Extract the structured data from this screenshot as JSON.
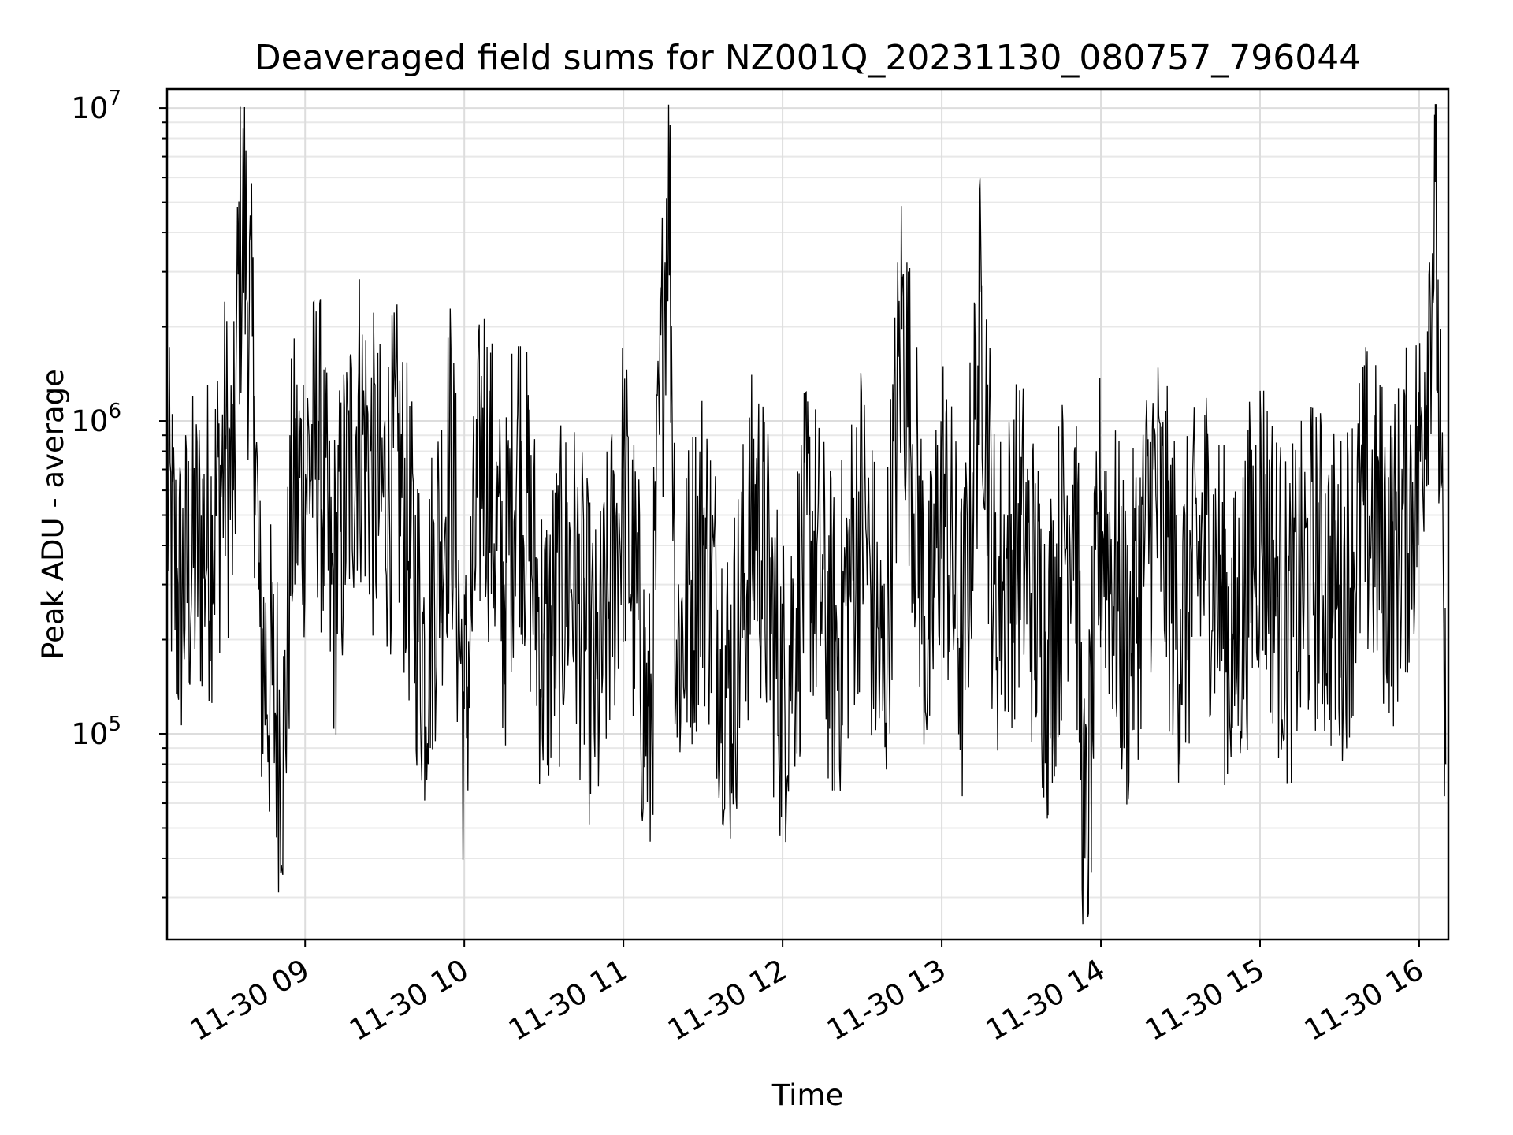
{
  "chart_data": {
    "type": "line",
    "title": "Deaveraged field sums for NZ001Q_20231130_080757_796044",
    "xlabel": "Time",
    "ylabel": "Peak ADU - average",
    "yscale": "log",
    "ylim": [
      22000,
      11500000
    ],
    "y_tick_labels": [
      {
        "base": "10",
        "exp": "5",
        "value": 100000
      },
      {
        "base": "10",
        "exp": "6",
        "value": 1000000
      },
      {
        "base": "10",
        "exp": "7",
        "value": 10000000
      }
    ],
    "x_tick_labels": [
      "11-30 09",
      "11-30 10",
      "11-30 11",
      "11-30 12",
      "11-30 13",
      "11-30 14",
      "11-30 15",
      "11-30 16"
    ],
    "x_tick_values": [
      "2023-11-30 09:00",
      "2023-11-30 10:00",
      "2023-11-30 11:00",
      "2023-11-30 12:00",
      "2023-11-30 13:00",
      "2023-11-30 14:00",
      "2023-11-30 15:00",
      "2023-11-30 16:00"
    ],
    "xlim": [
      "2023-11-30 08:07:57",
      "2023-11-30 16:11:00"
    ],
    "grid": true,
    "line_color": "#000000",
    "series": [
      {
        "x": [
          "2023-11-30 08:08",
          "2023-11-30 08:12",
          "2023-11-30 08:18",
          "2023-11-30 08:25",
          "2023-11-30 08:30",
          "2023-11-30 08:33",
          "2023-11-30 08:35",
          "2023-11-30 08:37",
          "2023-11-30 08:39",
          "2023-11-30 08:41",
          "2023-11-30 08:43",
          "2023-11-30 08:48",
          "2023-11-30 08:52",
          "2023-11-30 08:55",
          "2023-11-30 09:05",
          "2023-11-30 09:10",
          "2023-11-30 09:20",
          "2023-11-30 09:28",
          "2023-11-30 09:35",
          "2023-11-30 09:45",
          "2023-11-30 09:55",
          "2023-11-30 10:00",
          "2023-11-30 10:07",
          "2023-11-30 10:15",
          "2023-11-30 10:20",
          "2023-11-30 10:30",
          "2023-11-30 10:40",
          "2023-11-30 10:50",
          "2023-11-30 11:00",
          "2023-11-30 11:10",
          "2023-11-30 11:17",
          "2023-11-30 11:20",
          "2023-11-30 11:30",
          "2023-11-30 11:40",
          "2023-11-30 11:50",
          "2023-11-30 12:00",
          "2023-11-30 12:10",
          "2023-11-30 12:20",
          "2023-11-30 12:30",
          "2023-11-30 12:38",
          "2023-11-30 12:45",
          "2023-11-30 12:55",
          "2023-11-30 13:00",
          "2023-11-30 13:08",
          "2023-11-30 13:15",
          "2023-11-30 13:20",
          "2023-11-30 13:30",
          "2023-11-30 13:40",
          "2023-11-30 13:50",
          "2023-11-30 13:54",
          "2023-11-30 14:00",
          "2023-11-30 14:10",
          "2023-11-30 14:20",
          "2023-11-30 14:30",
          "2023-11-30 14:40",
          "2023-11-30 14:50",
          "2023-11-30 15:00",
          "2023-11-30 15:10",
          "2023-11-30 15:20",
          "2023-11-30 15:30",
          "2023-11-30 15:40",
          "2023-11-30 15:50",
          "2023-11-30 16:00",
          "2023-11-30 16:06",
          "2023-11-30 16:10"
        ],
        "y": [
          650000,
          300000,
          420000,
          500000,
          900000,
          600000,
          3500000,
          4800000,
          2500000,
          1200000,
          220000,
          150000,
          100000,
          600000,
          1000000,
          300000,
          1200000,
          600000,
          800000,
          200000,
          900000,
          120000,
          1100000,
          300000,
          1000000,
          200000,
          400000,
          150000,
          700000,
          100000,
          8500000,
          200000,
          500000,
          150000,
          600000,
          150000,
          500000,
          200000,
          600000,
          150000,
          2500000,
          200000,
          700000,
          200000,
          2700000,
          300000,
          500000,
          200000,
          800000,
          40000,
          600000,
          200000,
          700000,
          250000,
          500000,
          200000,
          600000,
          250000,
          400000,
          300000,
          600000,
          400000,
          800000,
          5800000,
          80000
        ]
      }
    ]
  }
}
